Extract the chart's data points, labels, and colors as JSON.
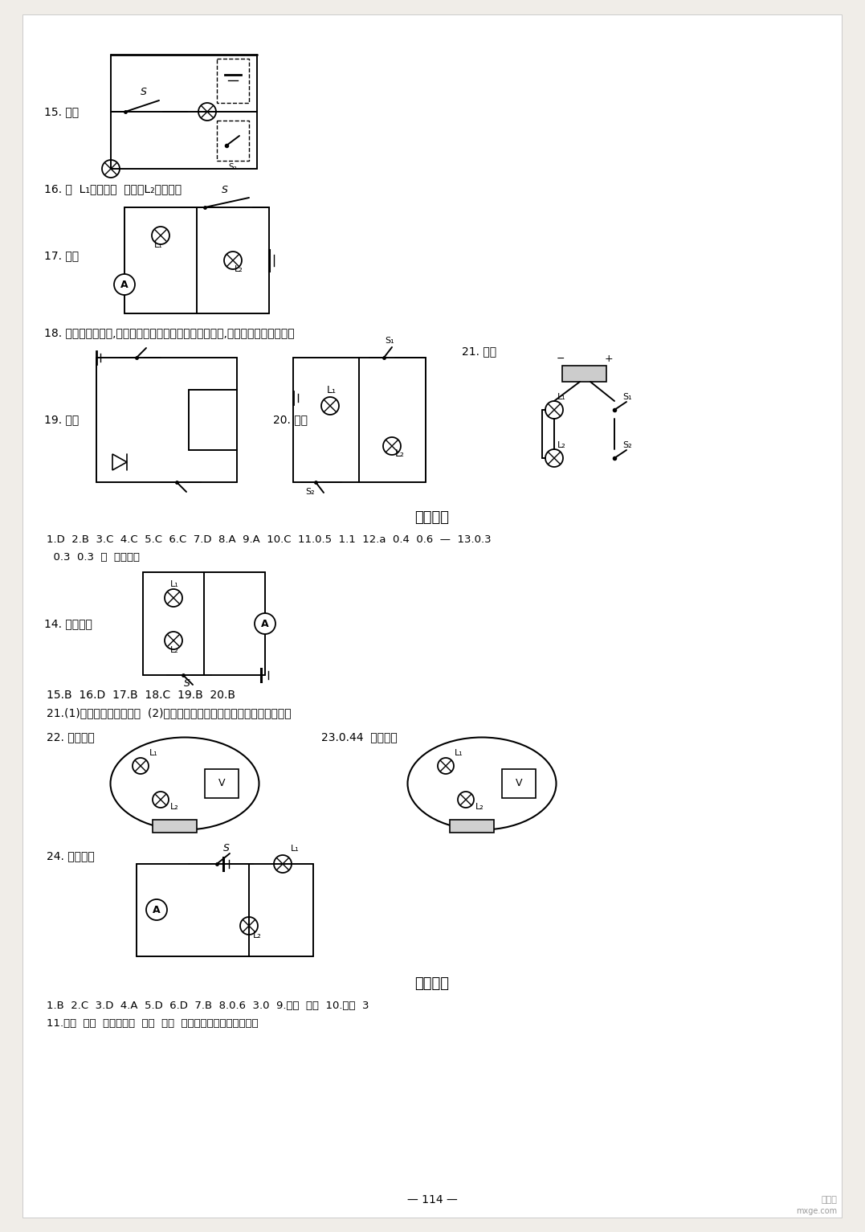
{
  "bg_color": "#f0ede8",
  "page_color": "#ffffff",
  "title1": "测试卷七",
  "title2": "测试卷八",
  "ans7_line1": "1.D  2.B  3.C  4.C  5.C  6.C  7.D  8.A  9.A  10.C  11.0.5  1.1  12.a  0.4  0.6  —  13.0.3",
  "ans7_line2": "  0.3  0.3  串  处处相等",
  "ans7_line3": "15.B  16.D  17.B  18.C  19.B  20.B",
  "ans7_line4": "21.(1)并联电路的电流特点  (2)选用不同规格的灯泡或选用不同阻值的灯泡",
  "ans8_line1": "1.B  2.C  3.D  4.A  5.D  6.D  7.B  8.0.6  3.0  9.电流  电压  10.断路  3",
  "ans8_line2": "11.串联  并联  绝对不允许  允许  量程  正接线柱流进负接线柱流出",
  "q15": "15. 如图",
  "q16": "16. 并  L₁不能发光  开关对L₂不起作用",
  "q17": "17. 如图",
  "q18": "18. 取下一个小灯泡,若另一个小灯泡还能发光说明是并联,若不能发光说明是串联",
  "q19": "19. 如图",
  "q20": "20. 如图",
  "q21": "21. 如图",
  "q14": "14. 如图所示",
  "q22": "22. 如图所示",
  "q23": "23.0.44  如图所示",
  "q24": "24. 如图所示",
  "page_num": "— 114 —",
  "wm1": "答案圈",
  "wm2": "mxge.com"
}
